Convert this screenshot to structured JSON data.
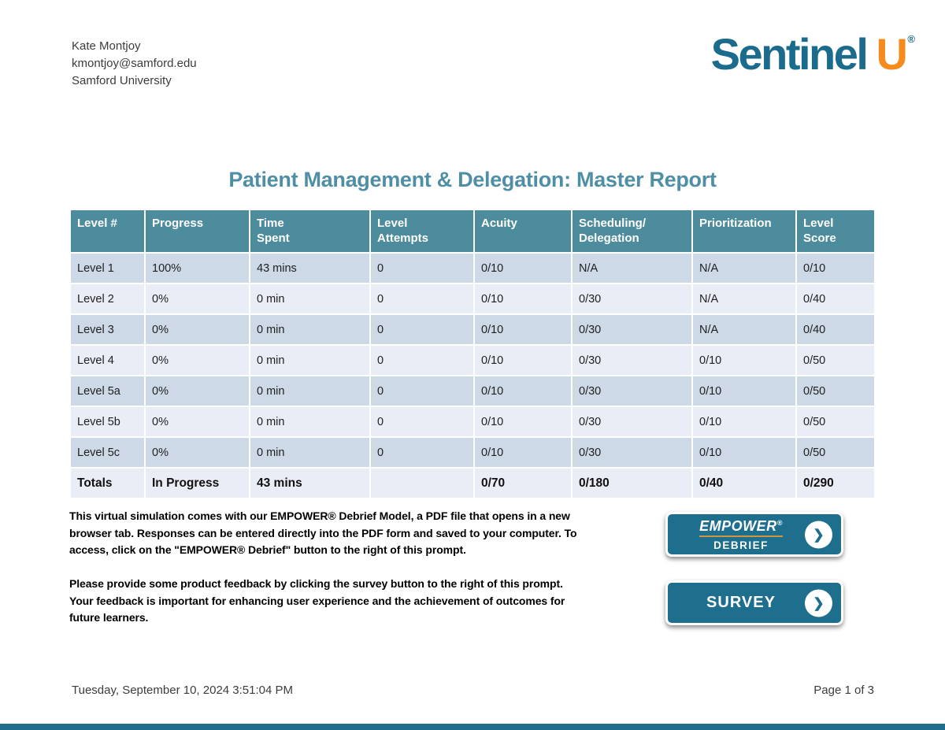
{
  "user": {
    "name": "Kate Montjoy",
    "email": "kmontjoy@samford.edu",
    "institution": "Samford University"
  },
  "logo": {
    "wordmark": "Sentinel",
    "u": "U",
    "registered": "®"
  },
  "report": {
    "title": "Patient Management & Delegation: Master Report"
  },
  "table": {
    "headers": [
      "Level #",
      "Progress",
      "Time\nSpent",
      "Level\nAttempts",
      "Acuity",
      "Scheduling/\nDelegation",
      "Prioritization",
      "Level\nScore"
    ],
    "rows": [
      [
        "Level 1",
        "100%",
        "43 mins",
        "0",
        "0/10",
        "N/A",
        "N/A",
        "0/10"
      ],
      [
        "Level 2",
        "0%",
        "0 min",
        "0",
        "0/10",
        "0/30",
        "N/A",
        "0/40"
      ],
      [
        "Level 3",
        "0%",
        "0 min",
        "0",
        "0/10",
        "0/30",
        "N/A",
        "0/40"
      ],
      [
        "Level 4",
        "0%",
        "0 min",
        "0",
        "0/10",
        "0/30",
        "0/10",
        "0/50"
      ],
      [
        "Level 5a",
        "0%",
        "0 min",
        "0",
        "0/10",
        "0/30",
        "0/10",
        "0/50"
      ],
      [
        "Level 5b",
        "0%",
        "0 min",
        "0",
        "0/10",
        "0/30",
        "0/10",
        "0/50"
      ],
      [
        "Level 5c",
        "0%",
        "0 min",
        "0",
        "0/10",
        "0/30",
        "0/10",
        "0/50"
      ]
    ],
    "totals": [
      "Totals",
      "In Progress",
      "43 mins",
      "",
      "0/70",
      "0/180",
      "0/40",
      "0/290"
    ]
  },
  "notes": {
    "debrief": "This virtual simulation comes with our EMPOWER® Debrief Model, a PDF file that opens in a new browser tab. Responses can be entered directly into the PDF form and saved to your computer. To access, click on the \"EMPOWER® Debrief\" button to the right of this prompt.",
    "survey": "Please provide some product feedback by clicking the survey button to the right of this prompt. Your feedback is important for enhancing user experience and the achievement of outcomes for future learners."
  },
  "buttons": {
    "empower": {
      "line1": "EMPOWER",
      "registered": "®",
      "line2": "DEBRIEF"
    },
    "survey": {
      "label": "SURVEY"
    }
  },
  "icons": {
    "chevron_right": "❯"
  },
  "footer": {
    "timestamp": "Tuesday, September 10, 2024 3:51:04 PM",
    "page": "Page 1 of 3"
  },
  "colors": {
    "header_teal": "#4d8c9c",
    "logo_teal": "#1b6b8c",
    "logo_orange": "#f68b1d",
    "button_teal": "#1e6e8d",
    "row_dark": "#cdd9e7",
    "row_light": "#e9edf5",
    "title_teal": "#4e8fa6"
  }
}
